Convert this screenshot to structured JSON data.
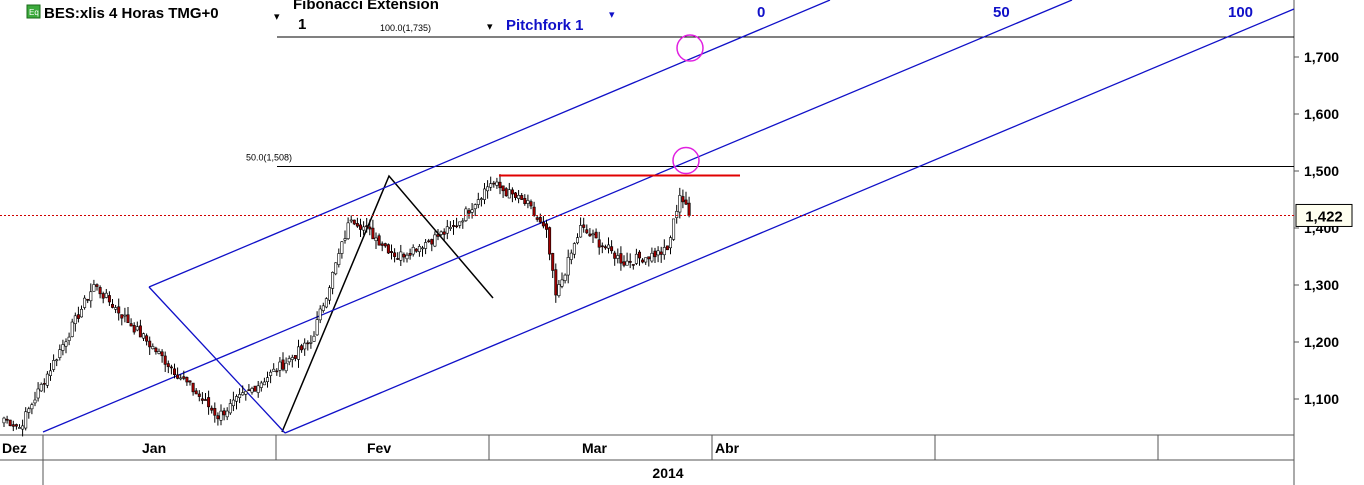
{
  "header": {
    "instrument": "BES:xlis 4 Horas TMG+0",
    "instrument_icon": "eq-badge-icon",
    "instrument_icon_text": "Eq",
    "dropdown_glyph": "▾",
    "fib_tool_name": "Fibonacci Extension",
    "fib_tool_value": "1",
    "pitchfork_name": "Pitchfork 1"
  },
  "chart_data": {
    "type": "candlestick",
    "title": "BES:xlis 4 Horas TMG+0",
    "ylim": [
      1.03,
      1.78
    ],
    "y_ticks": [
      "1,100",
      "1,200",
      "1,300",
      "1,400",
      "1,500",
      "1,600",
      "1,700"
    ],
    "y_tick_values": [
      1.1,
      1.2,
      1.3,
      1.4,
      1.5,
      1.6,
      1.7
    ],
    "last_price": "1,422",
    "last_price_value": 1.422,
    "x_labels": [
      "Dez",
      "Jan",
      "Fev",
      "Mar",
      "Abr"
    ],
    "year_label": "2014",
    "fib_levels": [
      {
        "label": "100.0(1,735)",
        "value": 1.735
      },
      {
        "label": "50.0(1,508)",
        "value": 1.508
      }
    ],
    "pitchfork_labels": [
      "0",
      "50",
      "100"
    ],
    "resistance_level": 1.492,
    "colors": {
      "pitchfork": "#1010c8",
      "fib": "#000000",
      "resistance": "#e00000",
      "price_line": "#d00000",
      "target_circle": "#e020e0",
      "bull": "#ffffff",
      "bear": "#a00000"
    },
    "segments": [
      {
        "n": 6,
        "from": 1.07,
        "to": 1.05
      },
      {
        "n": 24,
        "from": 1.05,
        "to": 1.3
      },
      {
        "n": 26,
        "from": 1.3,
        "to": 1.15
      },
      {
        "n": 14,
        "from": 1.15,
        "to": 1.07
      },
      {
        "n": 30,
        "from": 1.07,
        "to": 1.2
      },
      {
        "n": 13,
        "from": 1.2,
        "to": 1.42
      },
      {
        "n": 15,
        "from": 1.42,
        "to": 1.35
      },
      {
        "n": 18,
        "from": 1.35,
        "to": 1.4
      },
      {
        "n": 12,
        "from": 1.4,
        "to": 1.48
      },
      {
        "n": 12,
        "from": 1.48,
        "to": 1.44
      },
      {
        "n": 6,
        "from": 1.44,
        "to": 1.39
      },
      {
        "n": 3,
        "from": 1.39,
        "to": 1.28
      },
      {
        "n": 8,
        "from": 1.28,
        "to": 1.4
      },
      {
        "n": 14,
        "from": 1.4,
        "to": 1.34
      },
      {
        "n": 14,
        "from": 1.34,
        "to": 1.36
      },
      {
        "n": 4,
        "from": 1.36,
        "to": 1.46
      },
      {
        "n": 3,
        "from": 1.46,
        "to": 1.422
      }
    ]
  }
}
